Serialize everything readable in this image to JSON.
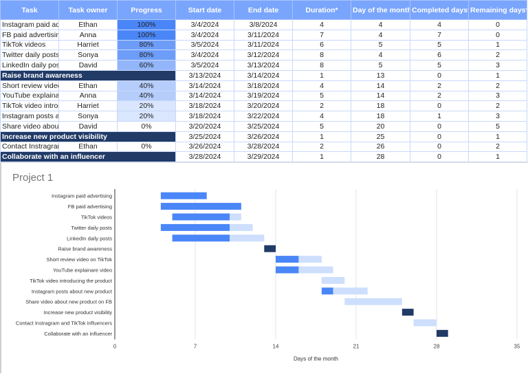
{
  "table": {
    "headers": [
      "Task",
      "Task owner",
      "Progress",
      "Start date",
      "End date",
      "Duration*",
      "Day of the month*",
      "Completed days*",
      "Remaining days*"
    ],
    "rows": [
      {
        "task": "Instagram paid advertising",
        "owner": "Ethan",
        "progress": "100%",
        "start": "3/4/2024",
        "end": "3/8/2024",
        "duration": "4",
        "day": "4",
        "completed": "4",
        "remaining": "0",
        "milestone": false
      },
      {
        "task": "FB paid advertising",
        "owner": "Anna",
        "progress": "100%",
        "start": "3/4/2024",
        "end": "3/11/2024",
        "duration": "7",
        "day": "4",
        "completed": "7",
        "remaining": "0",
        "milestone": false
      },
      {
        "task": "TikTok videos",
        "owner": "Harriet",
        "progress": "80%",
        "start": "3/5/2024",
        "end": "3/11/2024",
        "duration": "6",
        "day": "5",
        "completed": "5",
        "remaining": "1",
        "milestone": false
      },
      {
        "task": "Twitter daily posts",
        "owner": "Sonya",
        "progress": "80%",
        "start": "3/4/2024",
        "end": "3/12/2024",
        "duration": "8",
        "day": "4",
        "completed": "6",
        "remaining": "2",
        "milestone": false
      },
      {
        "task": "LinkedIn daily posts",
        "owner": "David",
        "progress": "60%",
        "start": "3/5/2024",
        "end": "3/13/2024",
        "duration": "8",
        "day": "5",
        "completed": "5",
        "remaining": "3",
        "milestone": false
      },
      {
        "task": "Raise brand awareness",
        "owner": "",
        "progress": "",
        "start": "3/13/2024",
        "end": "3/14/2024",
        "duration": "1",
        "day": "13",
        "completed": "0",
        "remaining": "1",
        "milestone": true
      },
      {
        "task": "Short review video on TikTok",
        "owner": "Ethan",
        "progress": "40%",
        "start": "3/14/2024",
        "end": "3/18/2024",
        "duration": "4",
        "day": "14",
        "completed": "2",
        "remaining": "2",
        "milestone": false
      },
      {
        "task": "YouTube explainare video",
        "owner": "Anna",
        "progress": "40%",
        "start": "3/14/2024",
        "end": "3/19/2024",
        "duration": "5",
        "day": "14",
        "completed": "2",
        "remaining": "3",
        "milestone": false
      },
      {
        "task": "TikTok video introducing the product",
        "owner": "Harriet",
        "progress": "20%",
        "start": "3/18/2024",
        "end": "3/20/2024",
        "duration": "2",
        "day": "18",
        "completed": "0",
        "remaining": "2",
        "milestone": false
      },
      {
        "task": "Instagram posts about new product",
        "owner": "Sonya",
        "progress": "20%",
        "start": "3/18/2024",
        "end": "3/22/2024",
        "duration": "4",
        "day": "18",
        "completed": "1",
        "remaining": "3",
        "milestone": false
      },
      {
        "task": "Share video about new product on FB",
        "owner": "David",
        "progress": "0%",
        "start": "3/20/2024",
        "end": "3/25/2024",
        "duration": "5",
        "day": "20",
        "completed": "0",
        "remaining": "5",
        "milestone": false
      },
      {
        "task": "Increase new product visibility",
        "owner": "",
        "progress": "",
        "start": "3/25/2024",
        "end": "3/26/2024",
        "duration": "1",
        "day": "25",
        "completed": "0",
        "remaining": "1",
        "milestone": true
      },
      {
        "task": "Contact Instragram and TikTok influencers",
        "owner": "Ethan",
        "progress": "0%",
        "start": "3/26/2024",
        "end": "3/28/2024",
        "duration": "2",
        "day": "26",
        "completed": "0",
        "remaining": "2",
        "milestone": false
      },
      {
        "task": "Collaborate with an influencer",
        "owner": "",
        "progress": "",
        "start": "3/28/2024",
        "end": "3/29/2024",
        "duration": "1",
        "day": "28",
        "completed": "0",
        "remaining": "1",
        "milestone": true
      }
    ]
  },
  "colors": {
    "header": "#7aa5fd",
    "milestone": "#213a66",
    "completed": "#4a86f7",
    "remaining": "#cddffc",
    "p100": "#4a86f7",
    "p80": "#6d9df8",
    "p60": "#92b6f9",
    "p40": "#b5cdfb",
    "p20": "#d9e6fd"
  },
  "chart_data": {
    "type": "bar",
    "stacked": true,
    "orientation": "horizontal",
    "title": "Project 1",
    "xlabel": "Days of the month",
    "xlim": [
      0,
      35
    ],
    "xticks": [
      0,
      7,
      14,
      21,
      28,
      35
    ],
    "grid": true,
    "categories": [
      "Instagram paid advertising",
      "FB paid advertising",
      "TikTok videos",
      "Twitter daily posts",
      "LinkedIn daily posts",
      "Raise brand awareness",
      "Short review video on TikTok",
      "YouTube explainare video",
      "TikTok video introducing the product",
      "Instagram posts about new product",
      "Share video about new product on FB",
      "Increase new product visibility",
      "Contact Instragram and TikTok influencers",
      "Collaborate with an influencer"
    ],
    "start": [
      4,
      4,
      5,
      4,
      5,
      13,
      14,
      14,
      18,
      18,
      20,
      25,
      26,
      28
    ],
    "completed": [
      4,
      7,
      5,
      6,
      5,
      0,
      2,
      2,
      0,
      1,
      0,
      0,
      0,
      0
    ],
    "remaining": [
      0,
      0,
      1,
      2,
      3,
      1,
      2,
      3,
      2,
      3,
      5,
      1,
      2,
      1
    ],
    "milestone": [
      false,
      false,
      false,
      false,
      false,
      true,
      false,
      false,
      false,
      false,
      false,
      true,
      false,
      true
    ]
  }
}
